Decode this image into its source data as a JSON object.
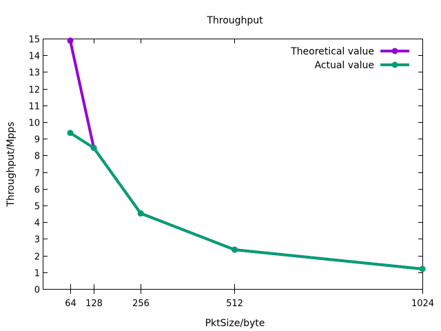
{
  "chart_data": {
    "type": "line",
    "title": "Throughput",
    "xlabel": "PktSize/byte",
    "ylabel": "Throughput/Mpps",
    "x": [
      64,
      128,
      256,
      512,
      1024
    ],
    "x_ticks": [
      "64",
      "128",
      "256",
      "512",
      "1024"
    ],
    "xlim": [
      0,
      1024
    ],
    "ylim": [
      0,
      15
    ],
    "y_ticks": [
      0,
      1,
      2,
      3,
      4,
      5,
      6,
      7,
      8,
      9,
      10,
      11,
      12,
      13,
      14,
      15
    ],
    "grid": false,
    "legend_position": "top-right",
    "series": [
      {
        "name": "Theoretical value",
        "color": "#9400d3",
        "values": [
          14.88,
          8.45,
          4.53,
          2.35,
          1.2
        ]
      },
      {
        "name": "Actual value",
        "color": "#009e73",
        "values": [
          9.35,
          8.45,
          4.53,
          2.35,
          1.2
        ]
      }
    ]
  }
}
